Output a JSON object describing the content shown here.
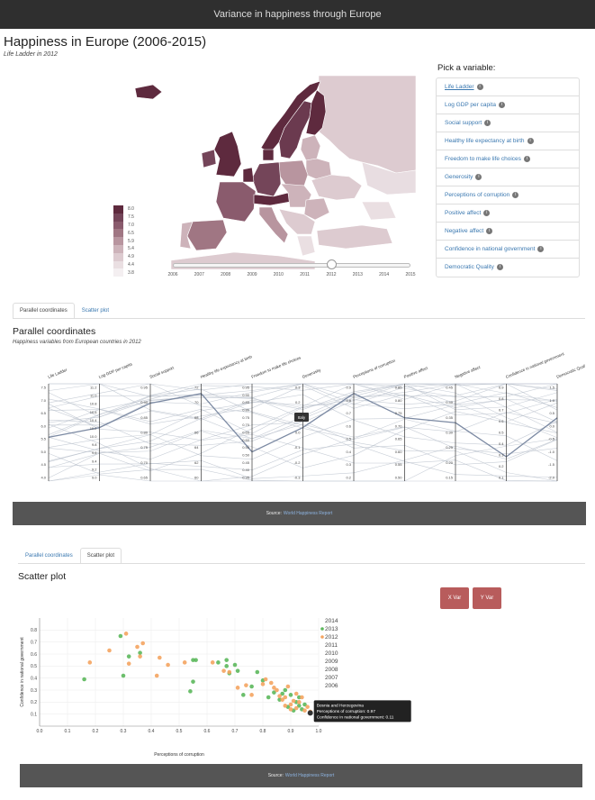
{
  "navbar": {
    "title": "Variance in happiness through Europe"
  },
  "header": {
    "title": "Happiness in Europe (2006-2015)",
    "subtitle": "Life Ladder in 2012"
  },
  "map": {
    "legend": [
      {
        "value": "8.0",
        "color": "#5e2a3e"
      },
      {
        "value": "7.5",
        "color": "#744559"
      },
      {
        "value": "7.0",
        "color": "#8a5b6d"
      },
      {
        "value": "6.5",
        "color": "#a07683"
      },
      {
        "value": "5.9",
        "color": "#b8959f"
      },
      {
        "value": "5.4",
        "color": "#cdb3ba"
      },
      {
        "value": "4.9",
        "color": "#ddcbd0"
      },
      {
        "value": "4.4",
        "color": "#eadfe2"
      },
      {
        "value": "3.8",
        "color": "#f4eff1"
      }
    ],
    "timeline": {
      "years": [
        "2006",
        "2007",
        "2008",
        "2009",
        "2010",
        "2011",
        "2012",
        "2013",
        "2014",
        "2015"
      ],
      "selected_index": 6
    }
  },
  "picker": {
    "title": "Pick a variable:",
    "items": [
      "Life Ladder",
      "Log GDP per capita",
      "Social support",
      "Healthy life expectancy at birth",
      "Freedom to make life choices",
      "Generosity",
      "Perceptions of corruption",
      "Positive affect",
      "Negative affect",
      "Confidence in national government",
      "Democratic Quality"
    ],
    "active_index": 0,
    "info_icon": "info-icon"
  },
  "tabs1": {
    "items": [
      "Parallel coordinates",
      "Scatter plot"
    ],
    "active_index": 0
  },
  "parallel": {
    "title": "Parallel coordinates",
    "subtitle": "Happiness variables from European countries in 2012",
    "tooltip": "Italy",
    "axes": [
      {
        "label": "Life Ladder",
        "ticks": [
          "7.5",
          "7.0",
          "6.5",
          "6.0",
          "5.5",
          "5.0",
          "4.5",
          "4.0"
        ]
      },
      {
        "label": "Log GDP per capita",
        "ticks": [
          "11.2",
          "11.0",
          "10.8",
          "10.6",
          "10.4",
          "10.2",
          "10.0",
          "9.8",
          "9.6",
          "9.4",
          "9.2",
          "9.0"
        ]
      },
      {
        "label": "Social support",
        "ticks": [
          "0.95",
          "0.90",
          "0.85",
          "0.80",
          "0.75",
          "0.70",
          "0.65"
        ]
      },
      {
        "label": "Healthy life expectancy at birth",
        "ticks": [
          "72",
          "70",
          "68",
          "66",
          "64",
          "62",
          "60"
        ]
      },
      {
        "label": "Freedom to make life choices",
        "ticks": [
          "0.95",
          "0.90",
          "0.85",
          "0.80",
          "0.75",
          "0.70",
          "0.65",
          "0.60",
          "0.55",
          "0.50",
          "0.45",
          "0.40",
          "0.35"
        ]
      },
      {
        "label": "Generosity",
        "ticks": [
          "0.3",
          "0.2",
          "0.1",
          "0.0",
          "-0.1",
          "-0.2",
          "-0.3"
        ]
      },
      {
        "label": "Perceptions of corruption",
        "ticks": [
          "0.9",
          "0.8",
          "0.7",
          "0.6",
          "0.5",
          "0.4",
          "0.3",
          "0.2"
        ]
      },
      {
        "label": "Positive affect",
        "ticks": [
          "0.85",
          "0.80",
          "0.75",
          "0.70",
          "0.65",
          "0.60",
          "0.55",
          "0.50"
        ]
      },
      {
        "label": "Negative affect",
        "ticks": [
          "0.45",
          "0.40",
          "0.35",
          "0.30",
          "0.25",
          "0.20",
          "0.15"
        ]
      },
      {
        "label": "Confidence in national government",
        "ticks": [
          "0.9",
          "0.8",
          "0.7",
          "0.6",
          "0.5",
          "0.4",
          "0.3",
          "0.2",
          "0.1"
        ]
      },
      {
        "label": "Democratic Quality",
        "ticks": [
          "1.5",
          "1.0",
          "0.5",
          "0.0",
          "-0.5",
          "-1.0",
          "-1.5",
          "-2.0"
        ]
      }
    ]
  },
  "footer": {
    "source_label": "Source:",
    "source_link": "World Happiness Report"
  },
  "tabs2": {
    "items": [
      "Parallel coordinates",
      "Scatter plot"
    ],
    "active_index": 1
  },
  "scatter": {
    "title": "Scatter plot",
    "buttons": {
      "x": "X Var",
      "y": "Y Var"
    },
    "tooltip": [
      "Bosnia and Herzegovina",
      "Perceptions of corruption: 0.97",
      "Confidence in national government: 0.11"
    ]
  },
  "chart_data": {
    "type": "scatter",
    "title": "",
    "xlabel": "Perceptions of corruption",
    "ylabel": "Confidence in national government",
    "xlim": [
      0,
      1.0
    ],
    "ylim": [
      0,
      0.9
    ],
    "x_ticks": [
      "0.0",
      "0.1",
      "0.2",
      "0.3",
      "0.4",
      "0.5",
      "0.6",
      "0.7",
      "0.8",
      "0.9",
      "1.0"
    ],
    "y_ticks": [
      "0.1",
      "0.2",
      "0.3",
      "0.4",
      "0.5",
      "0.6",
      "0.7",
      "0.8"
    ],
    "grid": true,
    "legend_position": "right",
    "legend": [
      "2014",
      "2013",
      "2012",
      "2011",
      "2010",
      "2009",
      "2008",
      "2007",
      "2006"
    ],
    "series": [
      {
        "name": "2013",
        "color": "#5cb85c",
        "points": [
          [
            0.16,
            0.39
          ],
          [
            0.3,
            0.42
          ],
          [
            0.29,
            0.75
          ],
          [
            0.32,
            0.58
          ],
          [
            0.36,
            0.61
          ],
          [
            0.55,
            0.55
          ],
          [
            0.56,
            0.55
          ],
          [
            0.67,
            0.5
          ],
          [
            0.68,
            0.44
          ],
          [
            0.7,
            0.51
          ],
          [
            0.71,
            0.46
          ],
          [
            0.55,
            0.37
          ],
          [
            0.54,
            0.29
          ],
          [
            0.64,
            0.53
          ],
          [
            0.67,
            0.55
          ],
          [
            0.73,
            0.26
          ],
          [
            0.76,
            0.33
          ],
          [
            0.78,
            0.45
          ],
          [
            0.8,
            0.38
          ],
          [
            0.82,
            0.24
          ],
          [
            0.84,
            0.28
          ],
          [
            0.87,
            0.27
          ],
          [
            0.88,
            0.3
          ],
          [
            0.9,
            0.26
          ],
          [
            0.92,
            0.2
          ],
          [
            0.93,
            0.24
          ],
          [
            0.94,
            0.14
          ],
          [
            0.95,
            0.18
          ],
          [
            0.97,
            0.11
          ],
          [
            0.86,
            0.22
          ],
          [
            0.89,
            0.16
          ],
          [
            0.91,
            0.13
          ],
          [
            0.93,
            0.17
          ]
        ]
      },
      {
        "name": "2012",
        "color": "#f4a460",
        "points": [
          [
            0.18,
            0.53
          ],
          [
            0.25,
            0.63
          ],
          [
            0.31,
            0.77
          ],
          [
            0.35,
            0.66
          ],
          [
            0.37,
            0.69
          ],
          [
            0.32,
            0.52
          ],
          [
            0.36,
            0.58
          ],
          [
            0.43,
            0.57
          ],
          [
            0.42,
            0.42
          ],
          [
            0.46,
            0.51
          ],
          [
            0.52,
            0.53
          ],
          [
            0.62,
            0.53
          ],
          [
            0.66,
            0.46
          ],
          [
            0.68,
            0.45
          ],
          [
            0.71,
            0.32
          ],
          [
            0.74,
            0.34
          ],
          [
            0.76,
            0.26
          ],
          [
            0.8,
            0.35
          ],
          [
            0.81,
            0.39
          ],
          [
            0.83,
            0.36
          ],
          [
            0.84,
            0.32
          ],
          [
            0.85,
            0.3
          ],
          [
            0.86,
            0.25
          ],
          [
            0.87,
            0.22
          ],
          [
            0.88,
            0.24
          ],
          [
            0.89,
            0.33
          ],
          [
            0.9,
            0.18
          ],
          [
            0.91,
            0.21
          ],
          [
            0.92,
            0.27
          ],
          [
            0.93,
            0.2
          ],
          [
            0.94,
            0.24
          ],
          [
            0.95,
            0.13
          ],
          [
            0.96,
            0.16
          ],
          [
            0.97,
            0.12
          ],
          [
            0.88,
            0.17
          ],
          [
            0.9,
            0.14
          ],
          [
            0.92,
            0.15
          ]
        ]
      }
    ]
  }
}
